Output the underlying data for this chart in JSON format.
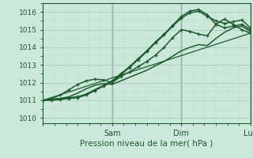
{
  "bg_color": "#cce8dc",
  "grid_color_major": "#a8cebb",
  "grid_color_minor": "#b8d8c8",
  "line_color_dark": "#1a5c2a",
  "xlim": [
    0,
    72
  ],
  "ylim": [
    1009.7,
    1016.5
  ],
  "yticks": [
    1010,
    1011,
    1012,
    1013,
    1014,
    1015,
    1016
  ],
  "xtick_positions": [
    0,
    24,
    48,
    72
  ],
  "xtick_labels": [
    "",
    "Sam",
    "Dim",
    "Lun"
  ],
  "xlabel": "Pression niveau de la mer( hPa )",
  "line1_x": [
    0,
    3,
    6,
    9,
    12,
    15,
    18,
    21,
    24,
    27,
    30,
    33,
    36,
    39,
    42,
    45,
    48,
    51,
    54,
    57,
    60,
    63,
    66,
    69,
    72
  ],
  "line1_y": [
    1011.0,
    1011.05,
    1011.1,
    1011.15,
    1011.2,
    1011.35,
    1011.6,
    1011.85,
    1012.1,
    1012.5,
    1012.9,
    1013.35,
    1013.8,
    1014.3,
    1014.75,
    1015.25,
    1015.75,
    1016.05,
    1016.15,
    1015.85,
    1015.3,
    1015.1,
    1015.2,
    1015.3,
    1015.0
  ],
  "line2_x": [
    0,
    3,
    6,
    9,
    12,
    15,
    18,
    21,
    24,
    27,
    30,
    33,
    36,
    39,
    42,
    45,
    48,
    51,
    54,
    57,
    60,
    63,
    66,
    69,
    72
  ],
  "line2_y": [
    1011.0,
    1011.0,
    1011.05,
    1011.1,
    1011.15,
    1011.3,
    1011.55,
    1011.8,
    1012.05,
    1012.45,
    1012.85,
    1013.3,
    1013.75,
    1014.25,
    1014.7,
    1015.2,
    1015.65,
    1015.95,
    1016.05,
    1015.75,
    1015.5,
    1015.35,
    1015.45,
    1015.55,
    1015.1
  ],
  "line3_x": [
    0,
    3,
    6,
    9,
    12,
    15,
    18,
    21,
    24,
    27,
    30,
    33,
    36,
    39,
    42,
    45,
    48,
    51,
    54,
    57,
    60,
    63,
    66,
    69,
    72
  ],
  "line3_y": [
    1011.0,
    1011.1,
    1011.3,
    1011.6,
    1011.9,
    1012.1,
    1012.2,
    1012.15,
    1012.0,
    1012.35,
    1012.6,
    1012.9,
    1013.2,
    1013.55,
    1014.0,
    1014.55,
    1015.0,
    1014.9,
    1014.75,
    1014.65,
    1015.3,
    1015.6,
    1015.3,
    1015.0,
    1014.8
  ],
  "line4_x": [
    0,
    72
  ],
  "line4_y": [
    1011.0,
    1014.8
  ],
  "line5_x": [
    0,
    3,
    6,
    9,
    12,
    15,
    18,
    21,
    24,
    27,
    30,
    33,
    36,
    39,
    42,
    45,
    48,
    51,
    54,
    57,
    60,
    63,
    66,
    69,
    72
  ],
  "line5_y": [
    1011.0,
    1011.05,
    1011.1,
    1011.2,
    1011.4,
    1011.65,
    1011.85,
    1011.95,
    1011.9,
    1012.1,
    1012.3,
    1012.5,
    1012.7,
    1012.95,
    1013.2,
    1013.5,
    1013.8,
    1014.0,
    1014.15,
    1014.1,
    1014.5,
    1014.85,
    1015.1,
    1015.2,
    1014.9
  ]
}
